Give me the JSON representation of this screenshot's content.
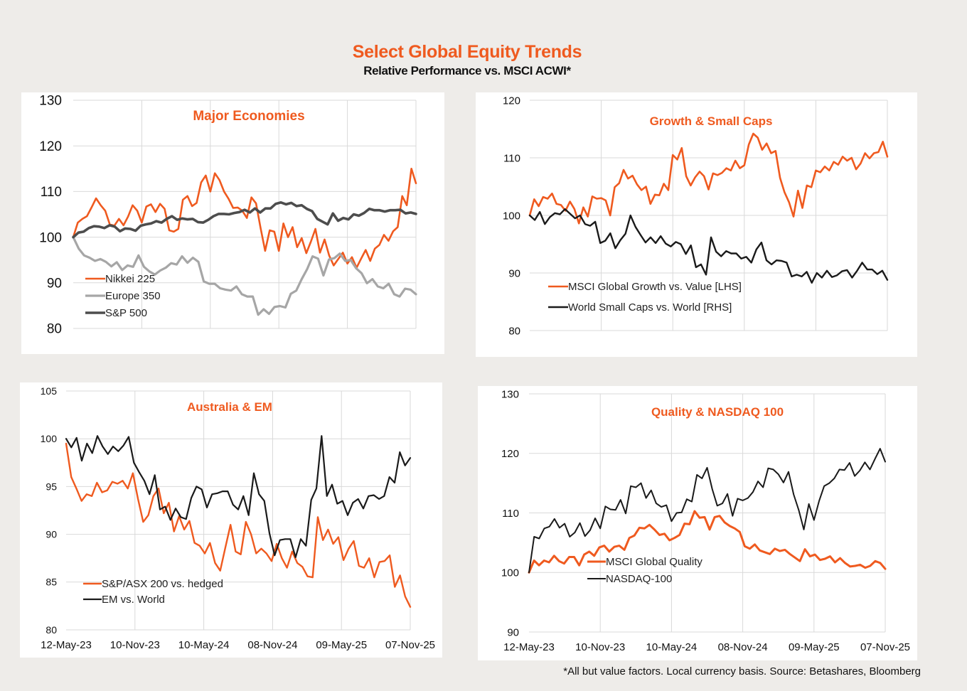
{
  "header": {
    "title": "Select Global Equity Trends",
    "subtitle": "Relative Performance vs. MSCI ACWI*"
  },
  "footnote": "*All but value factors. Local currency basis.  Source: Betashares, Bloomberg",
  "colors": {
    "orange": "#ef5a1f",
    "gray_light": "#a6a6a6",
    "gray_dark": "#4d4d4d",
    "black": "#1a1a1a",
    "title_orange": "#ef5a1f"
  },
  "chart_data": [
    {
      "id": "major",
      "type": "line",
      "title": "Major Economies",
      "xlabel": "",
      "ylabel": "",
      "ylim": [
        80,
        130
      ],
      "yticks": [
        80,
        90,
        100,
        110,
        120,
        130
      ],
      "x_range": [
        "12-May-23",
        "07-Nov-25"
      ],
      "xtick_labels": [],
      "xgrid_count": 5,
      "grid": true,
      "legend": "bottom-left",
      "series": [
        {
          "name": "Nikkei 225",
          "color": "orange",
          "values": [
            100,
            103.2,
            104,
            104.6,
            106.5,
            108.5,
            107,
            105.8,
            102.8,
            102.5,
            104,
            102.6,
            104.5,
            107,
            105.8,
            103.2,
            106.7,
            107.2,
            105.5,
            107.3,
            106.2,
            101.5,
            101.2,
            101.8,
            108.2,
            109,
            106.8,
            107.5,
            112,
            113.5,
            110,
            114,
            112.5,
            110,
            108.4,
            106.4,
            106.5,
            105.8,
            104.2,
            108.7,
            107.4,
            102,
            97,
            101.5,
            101.2,
            97,
            103,
            100,
            102.2,
            97.8,
            99.8,
            96.5,
            99,
            101.8,
            96.6,
            99.5,
            96,
            93.8,
            95.2,
            96.6,
            94.2,
            95.6,
            93.3,
            95.3,
            97.2,
            94.8,
            97.5,
            98.3,
            100.5,
            99.2,
            101.3,
            102.2,
            109,
            107,
            115,
            111.8
          ]
        },
        {
          "name": "Europe 350",
          "color": "gray_light",
          "values": [
            100,
            97.5,
            96,
            95.5,
            94.8,
            95.2,
            94.6,
            93.6,
            94.5,
            92.8,
            93.8,
            93.5,
            96,
            93.5,
            92.5,
            91.8,
            92.7,
            93.3,
            94.3,
            94,
            95.8,
            94.4,
            95.5,
            94.6,
            90.3,
            89.8,
            89.8,
            88.8,
            88.5,
            88.3,
            89.2,
            87.5,
            87,
            87,
            83,
            84.2,
            83.2,
            84.7,
            84.9,
            84.6,
            87.6,
            88.3,
            90.8,
            93,
            95.8,
            95.3,
            91.6,
            95.1,
            95.4,
            96.4,
            94.8,
            95,
            93.2,
            92.1,
            89.9,
            90.8,
            89.2,
            88.8,
            89.8,
            87.5,
            87,
            88.7,
            88.5,
            87.5
          ]
        },
        {
          "name": "S&P 500",
          "color": "gray_dark",
          "values": [
            100,
            101,
            101.2,
            102,
            102.4,
            102.3,
            102,
            102.6,
            102.3,
            101.3,
            101.9,
            101.8,
            101.4,
            102.5,
            102.8,
            103,
            103.5,
            103.2,
            104,
            104.6,
            103.8,
            104.1,
            103.9,
            104,
            103.3,
            103.2,
            103.8,
            104.6,
            105.1,
            105.1,
            105,
            105.3,
            105.5,
            106,
            105.4,
            106.3,
            105.4,
            106.3,
            106.3,
            107.3,
            107.6,
            107.2,
            107.5,
            106.8,
            107,
            106.2,
            105.7,
            104,
            103.4,
            102.8,
            105.2,
            103.6,
            104.2,
            103.9,
            105,
            104.7,
            105.3,
            106.2,
            105.9,
            105.9,
            105.6,
            105.9,
            105.9,
            106,
            105.2,
            105.4,
            105.1
          ]
        }
      ]
    },
    {
      "id": "growth",
      "type": "line",
      "title": "Growth & Small Caps",
      "xlabel": "",
      "ylabel": "",
      "ylim": [
        80,
        120
      ],
      "yticks": [
        80,
        90,
        100,
        110,
        120
      ],
      "x_range": [
        "12-May-23",
        "07-Nov-25"
      ],
      "xtick_labels": [],
      "xgrid_count": 5,
      "grid": true,
      "legend": "bottom-center",
      "series": [
        {
          "name": "MSCI Global Growth vs. Value [LHS]",
          "color": "orange",
          "values": [
            100,
            102.8,
            101.6,
            103.2,
            102.9,
            103.8,
            102,
            101.8,
            100.8,
            102.4,
            101.1,
            98.6,
            101.4,
            99.8,
            103.3,
            102.9,
            103,
            102.6,
            100,
            104.9,
            105.6,
            107.9,
            106.4,
            106.9,
            105.4,
            104.4,
            105,
            102,
            103.6,
            103.5,
            105.5,
            104.4,
            110.5,
            109.7,
            111.7,
            106.8,
            105.2,
            106.6,
            107.6,
            106.8,
            104.5,
            107.3,
            107,
            107.4,
            108.2,
            107.8,
            109.5,
            108.2,
            108.7,
            112.3,
            114.2,
            113.5,
            111.4,
            112.5,
            110.8,
            111.2,
            106.5,
            104,
            102.3,
            99.8,
            104.3,
            101.3,
            105.2,
            104.9,
            107.8,
            107.5,
            108.5,
            107.8,
            109.3,
            108.8,
            110.2,
            109.5,
            110,
            108,
            109,
            110.8,
            109.9,
            110.8,
            111,
            112.8,
            110.2
          ]
        },
        {
          "name": "World Small Caps vs. World [RHS]",
          "color": "black",
          "values": [
            100,
            99.2,
            100.6,
            98.5,
            99.7,
            100.4,
            100.2,
            101.1,
            100.3,
            99.5,
            100,
            98.5,
            98.2,
            98.9,
            95.2,
            95.6,
            96.9,
            94.3,
            95.7,
            96.8,
            100,
            98,
            96.6,
            95.3,
            96.2,
            95.2,
            96.4,
            95.1,
            94.6,
            95.4,
            95,
            93.3,
            94.8,
            91,
            91.5,
            89.7,
            96.2,
            93.7,
            92.9,
            93.8,
            93.4,
            93.4,
            92.5,
            92.8,
            91.8,
            94.1,
            95.3,
            92.2,
            91.5,
            92.2,
            92.1,
            91.8,
            89.4,
            89.7,
            89.4,
            90.2,
            88.3,
            90,
            89.2,
            90.4,
            89.3,
            89.6,
            90.3,
            90.5,
            89.2,
            90.4,
            91.8,
            90.6,
            90.6,
            89.8,
            90.4,
            88.8
          ]
        }
      ]
    },
    {
      "id": "australia",
      "type": "line",
      "title": "Australia & EM",
      "xlabel": "",
      "ylabel": "",
      "ylim": [
        80,
        105
      ],
      "yticks": [
        80,
        85,
        90,
        95,
        100,
        105
      ],
      "x_range": [
        "12-May-23",
        "07-Nov-25"
      ],
      "xtick_labels": [
        "12-May-23",
        "10-Nov-23",
        "10-May-24",
        "08-Nov-24",
        "09-May-25",
        "07-Nov-25"
      ],
      "grid": true,
      "legend": "bottom-left",
      "series": [
        {
          "name": "S&P/ASX 200 vs. hedged",
          "color": "orange",
          "values": [
            99.5,
            96,
            94.8,
            93.5,
            94.2,
            94,
            95.4,
            94.4,
            94.6,
            95.5,
            95.3,
            95.6,
            94.8,
            96.4,
            93.7,
            91.3,
            92,
            94,
            94.8,
            92.2,
            93.3,
            90.3,
            91.9,
            90.5,
            91.4,
            89.1,
            88.8,
            88,
            89.1,
            87,
            86.2,
            88.6,
            91,
            88.2,
            87.9,
            91.3,
            90,
            88,
            88.5,
            88,
            87.2,
            89,
            87.5,
            86.5,
            88.2,
            87,
            86.6,
            85.6,
            85.5,
            91.8,
            89.4,
            90.5,
            89,
            89.7,
            87.3,
            88.5,
            89.3,
            86.7,
            86.5,
            87.5,
            85.5,
            87.1,
            87.2,
            87.8,
            84.5,
            85.7,
            83.5,
            82.4
          ]
        },
        {
          "name": "EM vs. World",
          "color": "black",
          "values": [
            100,
            99.1,
            100.1,
            97.7,
            99.5,
            98.5,
            100.3,
            99.2,
            98.4,
            99.2,
            98.7,
            99.3,
            100.2,
            97.5,
            96.5,
            95.6,
            94.2,
            96.2,
            92.6,
            92.9,
            91.5,
            92.7,
            91.8,
            91.6,
            93.8,
            95,
            94.7,
            92.8,
            94.2,
            94.3,
            94.5,
            94.5,
            93.1,
            92.6,
            94,
            92,
            96.4,
            94.2,
            93.5,
            90.1,
            87.8,
            89.4,
            89.5,
            89.5,
            87.6,
            89.5,
            88.8,
            93.6,
            94.8,
            100.3,
            94,
            95.2,
            93.2,
            93.5,
            92,
            93.3,
            93.7,
            92.7,
            94,
            94.1,
            93.7,
            94,
            96,
            95.4,
            98.6,
            97.2,
            98
          ]
        }
      ]
    },
    {
      "id": "quality",
      "type": "line",
      "title": "Quality & NASDAQ 100",
      "xlabel": "",
      "ylabel": "",
      "ylim": [
        90,
        130
      ],
      "yticks": [
        90,
        100,
        110,
        120,
        130
      ],
      "x_range": [
        "12-May-23",
        "07-Nov-25"
      ],
      "xtick_labels": [
        "12-May-23",
        "10-Nov-23",
        "10-May-24",
        "08-Nov-24",
        "09-May-25",
        "07-Nov-25"
      ],
      "grid": true,
      "legend": "center",
      "series": [
        {
          "name": "MSCI Global Quality",
          "color": "orange",
          "values": [
            100,
            102,
            101.2,
            102,
            101.7,
            102.8,
            101.9,
            101.5,
            102.6,
            102.6,
            101.2,
            103,
            103.5,
            102.8,
            104.2,
            104.5,
            103.5,
            104.3,
            104.5,
            103.8,
            105.8,
            106.2,
            107.5,
            107.4,
            108,
            107.2,
            106.3,
            106.5,
            105.4,
            105.8,
            106.3,
            108.2,
            108.1,
            110.3,
            109.2,
            109.3,
            107.2,
            109.3,
            109.5,
            108.4,
            107.8,
            107.4,
            106.8,
            104.4,
            104,
            104.7,
            103.7,
            103.4,
            103.1,
            104,
            103.6,
            103.8,
            103.1,
            102.5,
            101.9,
            103.9,
            102.7,
            103,
            102.1,
            102.3,
            102.7,
            101.7,
            102.4,
            101.6,
            101,
            101.1,
            101.3,
            100.8,
            101.1,
            101.9,
            101.6,
            100.6
          ]
        },
        {
          "name": "NASDAQ-100",
          "color": "black",
          "values": [
            100,
            106,
            105.7,
            107.4,
            107.7,
            109,
            107.5,
            108.2,
            106,
            106.7,
            108.3,
            106.1,
            107.1,
            109.1,
            107.4,
            111.1,
            110.6,
            110.5,
            112.2,
            109.9,
            114.5,
            114.3,
            115,
            112.5,
            113.8,
            111.6,
            111,
            111.3,
            108.6,
            110,
            110.1,
            112.3,
            111.9,
            116.4,
            115.8,
            117.6,
            114,
            111.2,
            111.6,
            113.2,
            109.5,
            112.4,
            112.1,
            112.5,
            113.5,
            115.3,
            114.3,
            117.5,
            117.3,
            116.5,
            115.1,
            116.9,
            113.1,
            110.5,
            107.2,
            111.5,
            108.8,
            112,
            114.5,
            115,
            115.8,
            117.3,
            117.2,
            118.4,
            116.2,
            117.1,
            118.5,
            117.3,
            119.1,
            120.8,
            118.6
          ]
        }
      ]
    }
  ]
}
